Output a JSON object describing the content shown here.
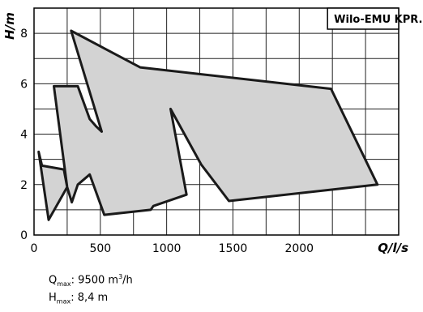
{
  "chart_data": {
    "type": "area",
    "legend": "Wilo-EMU KPR...",
    "xlabel": "Q/l/s",
    "ylabel": "H/m",
    "xlim": [
      0,
      2750
    ],
    "ylim": [
      0,
      9
    ],
    "xticks": [
      0,
      500,
      1000,
      1500,
      2000
    ],
    "yticks": [
      0,
      2,
      4,
      6,
      8
    ],
    "grid": true,
    "legend_position": "top-right",
    "fill_color": "#d3d3d3",
    "line_color": "#1a1a1a",
    "polygons": [
      {
        "x": [
          35,
          60,
          225,
          250,
          170,
          110,
          35
        ],
        "y": [
          3.3,
          2.75,
          2.6,
          1.9,
          1.2,
          0.6,
          3.3
        ]
      },
      {
        "x": [
          285,
          255,
          225,
          150,
          190,
          240,
          285
        ],
        "y": [
          1.3,
          1.9,
          3.2,
          5.9,
          5.9,
          5.9,
          1.3
        ]
      },
      {
        "x": [
          330,
          380,
          530,
          900
        ],
        "y": [
          5.9,
          5.9,
          0.8,
          1.1
        ]
      },
      {
        "x": [
          285,
          330,
          420,
          530,
          900,
          1030,
          1150,
          1020,
          1250,
          1470,
          2590,
          2240,
          800,
          270,
          510,
          440,
          330,
          285
        ],
        "y": [
          1.3,
          2.0,
          2.4,
          0.8,
          1.1,
          1.4,
          1.6,
          5.0,
          2.8,
          1.3,
          2.0,
          5.8,
          6.6,
          8.1,
          4.0,
          4.4,
          5.9,
          1.3
        ]
      }
    ],
    "outline_points": {
      "x": [
        35,
        60,
        225,
        250,
        285,
        330,
        420,
        530,
        880,
        900,
        1150,
        1030,
        1260,
        1470,
        2590,
        2240,
        800,
        280,
        510,
        470,
        420,
        330,
        150,
        250,
        110,
        35
      ],
      "y": [
        3.3,
        2.75,
        2.6,
        1.9,
        1.3,
        2.0,
        2.4,
        0.8,
        1.0,
        1.15,
        1.6,
        5.0,
        2.8,
        1.35,
        2.0,
        5.8,
        6.65,
        8.1,
        4.1,
        4.3,
        4.6,
        5.9,
        5.9,
        1.9,
        0.6,
        3.3
      ]
    }
  },
  "stats": {
    "qmax_symbol": "Q",
    "qmax_sub": "max",
    "qmax_value": ": 9500 m",
    "qmax_sup": "3",
    "qmax_unit": "/h",
    "hmax_symbol": "H",
    "hmax_sub": "max",
    "hmax_value": ": 8,4 m"
  }
}
